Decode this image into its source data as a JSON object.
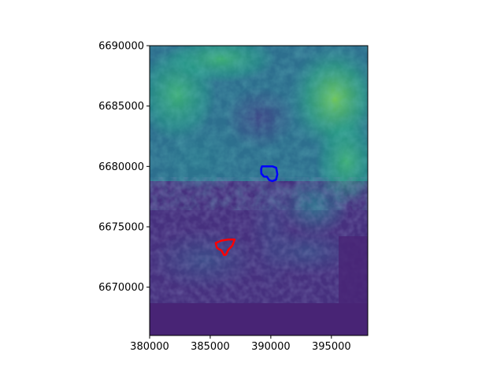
{
  "chart_data": {
    "type": "raster-map",
    "colormap": "viridis",
    "xlim": [
      380000,
      398000
    ],
    "ylim": [
      6666000,
      6690000
    ],
    "x_ticks": [
      380000,
      385000,
      390000,
      395000
    ],
    "y_ticks": [
      6670000,
      6675000,
      6680000,
      6685000,
      6690000
    ],
    "x_tick_labels": [
      "380000",
      "385000",
      "390000",
      "395000"
    ],
    "y_tick_labels": [
      "6670000",
      "6675000",
      "6680000",
      "6685000",
      "6690000"
    ],
    "grid": false,
    "polygons": [
      {
        "color": "#0000ff",
        "points": [
          [
            389270,
            6680000
          ],
          [
            389650,
            6680000
          ],
          [
            390150,
            6680000
          ],
          [
            390440,
            6679890
          ],
          [
            390540,
            6679350
          ],
          [
            390430,
            6678900
          ],
          [
            390120,
            6678780
          ],
          [
            389860,
            6678880
          ],
          [
            389680,
            6679150
          ],
          [
            389430,
            6679160
          ],
          [
            389220,
            6679400
          ],
          [
            389200,
            6679800
          ]
        ]
      },
      {
        "color": "#ff0000",
        "points": [
          [
            385450,
            6673650
          ],
          [
            385900,
            6673850
          ],
          [
            386500,
            6673950
          ],
          [
            387020,
            6673950
          ],
          [
            386820,
            6673450
          ],
          [
            386500,
            6673100
          ],
          [
            386300,
            6672700
          ],
          [
            386150,
            6672650
          ],
          [
            385920,
            6673050
          ],
          [
            385700,
            6673150
          ],
          [
            385550,
            6673280
          ]
        ]
      }
    ]
  }
}
